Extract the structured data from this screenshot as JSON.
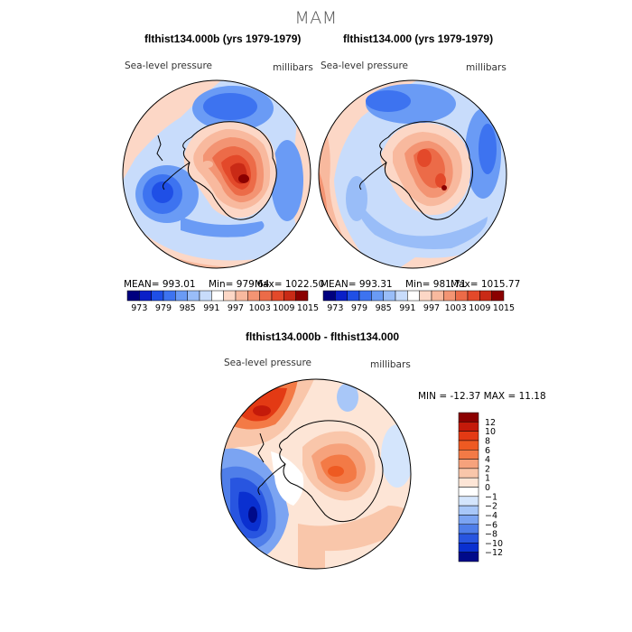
{
  "figure": {
    "season": "MAM",
    "variable_label": "Sea-level pressure",
    "units_label": "millibars"
  },
  "panels": [
    {
      "title": "flthist134.000b (yrs 1979-1979)",
      "stats": {
        "mean": "MEAN= 993.01",
        "min": "Min= 979.64",
        "max": "Max= 1022.50"
      }
    },
    {
      "title": "flthist134.000 (yrs 1979-1979)",
      "stats": {
        "mean": "MEAN= 993.31",
        "min": "Min= 981.71",
        "max": "Max= 1015.77"
      }
    }
  ],
  "colorbar_abs": {
    "labels": [
      "973",
      "979",
      "985",
      "991",
      "997",
      "1003",
      "1009",
      "1015"
    ],
    "colors": [
      "#00007f",
      "#0a1fc8",
      "#1f4fe6",
      "#3d73f0",
      "#6a9bf5",
      "#99bdf8",
      "#c8dcfb",
      "#ffffff",
      "#fcd7c6",
      "#f8b99e",
      "#f39473",
      "#ec6b48",
      "#e3492a",
      "#c92a16",
      "#8b0000"
    ]
  },
  "diff_panel": {
    "title": "flthist134.000b - flthist134.000",
    "minmax": "MIN = -12.37  MAX =  11.18",
    "colorbar_labels": [
      "12",
      "10",
      "8",
      "6",
      "4",
      "2",
      "1",
      "0",
      "−1",
      "−2",
      "−4",
      "−6",
      "−8",
      "−10",
      "−12"
    ],
    "colors": [
      "#8b0000",
      "#c41a0a",
      "#e33a14",
      "#ee5a22",
      "#f37a46",
      "#f6a27c",
      "#f9c6aa",
      "#fde5d6",
      "#ffffff",
      "#d4e5fc",
      "#a8c7f8",
      "#7ba4f2",
      "#4f7ee9",
      "#2855e0",
      "#0a30d0",
      "#000a8a"
    ]
  }
}
